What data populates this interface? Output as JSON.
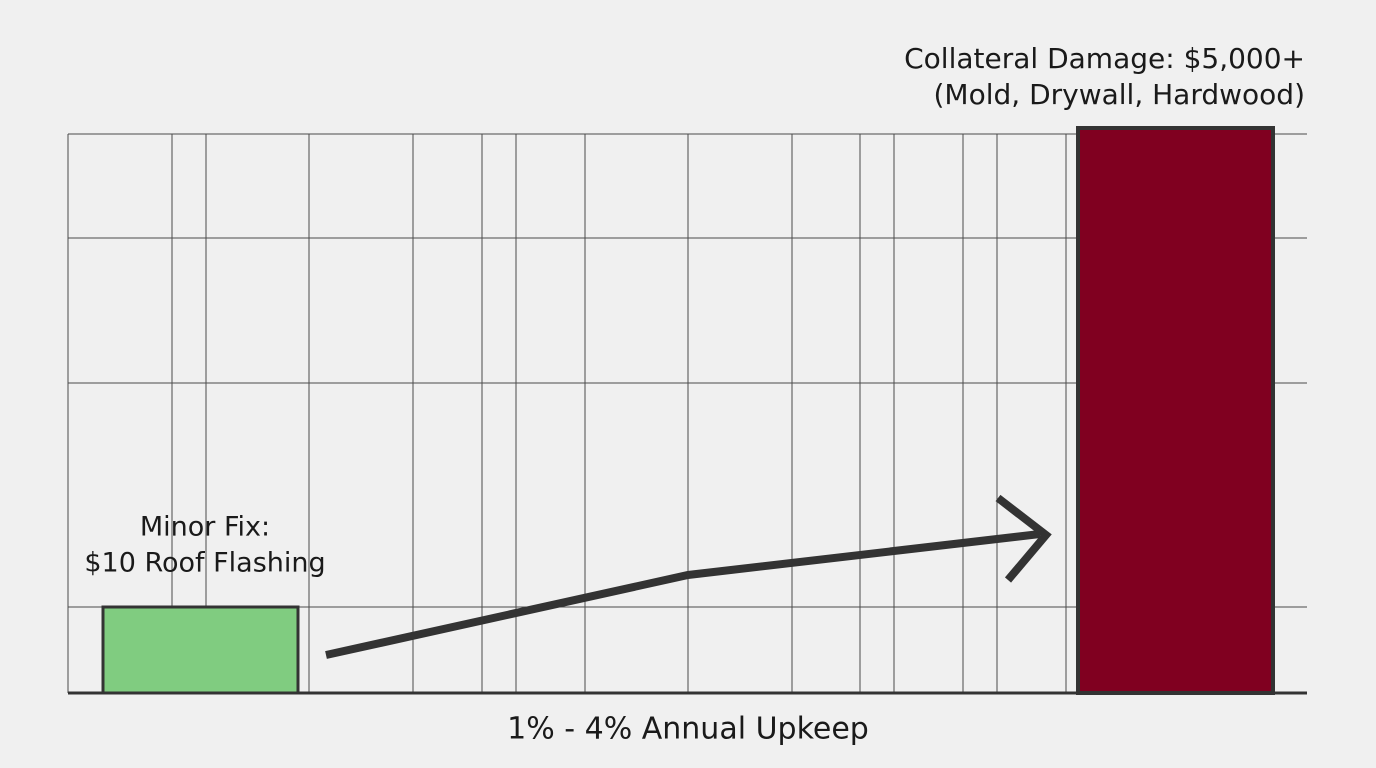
{
  "labels": {
    "collateral": {
      "line1": "Collateral Damage: $5,000+",
      "line2": "(Mold, Drywall, Hardwood)"
    },
    "minor_fix": {
      "line1": "Minor Fix:",
      "line2": "$10 Roof Flashing"
    },
    "axis_caption": "1% - 4% Annual Upkeep"
  }
}
